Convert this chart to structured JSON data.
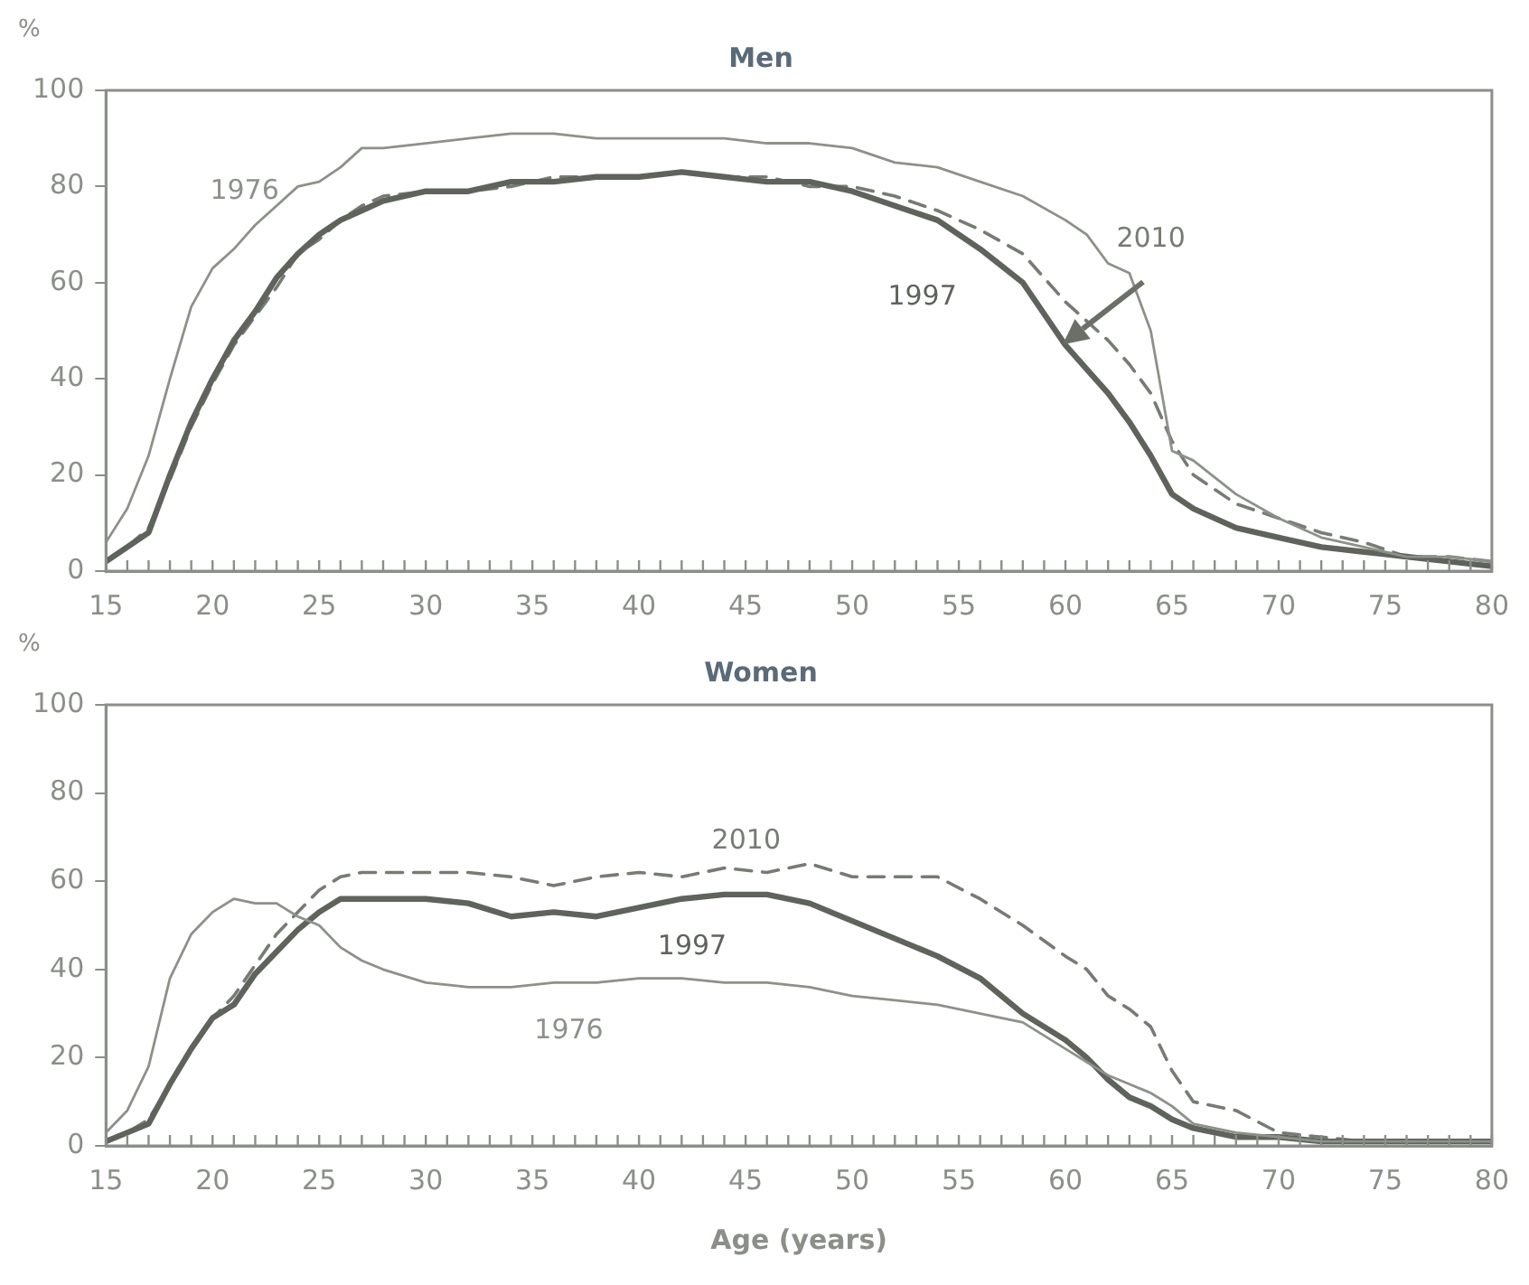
{
  "chart_data": [
    {
      "type": "line",
      "title": "Men",
      "ylabel": "%",
      "x": [
        15,
        16,
        17,
        18,
        19,
        20,
        21,
        22,
        23,
        24,
        25,
        26,
        27,
        28,
        30,
        32,
        34,
        36,
        38,
        40,
        42,
        44,
        46,
        48,
        50,
        52,
        54,
        56,
        58,
        60,
        61,
        62,
        63,
        64,
        65,
        66,
        68,
        70,
        72,
        74,
        76,
        78,
        80
      ],
      "series": [
        {
          "name": "1976",
          "color": "#8c9189",
          "line_style": "solid",
          "values": [
            6,
            13,
            24,
            40,
            55,
            63,
            67,
            72,
            76,
            80,
            81,
            84,
            88,
            88,
            89,
            90,
            91,
            91,
            90,
            90,
            90,
            90,
            89,
            89,
            88,
            85,
            84,
            81,
            78,
            73,
            70,
            64,
            62,
            50,
            25,
            23,
            16,
            11,
            7,
            5,
            3,
            3,
            2
          ]
        },
        {
          "name": "1997",
          "color": "#5e635b",
          "line_style": "solid",
          "values": [
            2,
            5,
            8,
            20,
            31,
            40,
            48,
            54,
            61,
            66,
            70,
            73,
            75,
            77,
            79,
            79,
            81,
            81,
            82,
            82,
            83,
            82,
            81,
            81,
            79,
            76,
            73,
            67,
            60,
            47,
            42,
            37,
            31,
            24,
            16,
            13,
            9,
            7,
            5,
            4,
            3,
            2,
            1
          ]
        },
        {
          "name": "2010",
          "color": "#767b73",
          "line_style": "dashed",
          "values": [
            2,
            5,
            9,
            19,
            30,
            39,
            47,
            53,
            59,
            66,
            69,
            73,
            76,
            78,
            79,
            79,
            80,
            82,
            82,
            82,
            83,
            82,
            82,
            80,
            80,
            78,
            75,
            71,
            66,
            56,
            52,
            48,
            43,
            37,
            27,
            20,
            14,
            11,
            8,
            6,
            3,
            3,
            2
          ]
        }
      ],
      "xlim": [
        15,
        80
      ],
      "ylim": [
        0,
        100
      ],
      "xticks": [
        15,
        {
          "value": 16,
          "label": null
        },
        {
          "value": 17,
          "label": null
        },
        {
          "value": 18,
          "label": null
        },
        {
          "value": 19,
          "label": null
        },
        20,
        {
          "value": 21,
          "label": null
        },
        {
          "value": 22,
          "label": null
        },
        {
          "value": 23,
          "label": null
        },
        {
          "value": 24,
          "label": null
        },
        25,
        {
          "value": 26,
          "label": null
        },
        {
          "value": 27,
          "label": null
        },
        {
          "value": 28,
          "label": null
        },
        {
          "value": 29,
          "label": null
        },
        30,
        {
          "value": 31,
          "label": null
        },
        {
          "value": 32,
          "label": null
        },
        {
          "value": 33,
          "label": null
        },
        {
          "value": 34,
          "label": null
        },
        35,
        {
          "value": 36,
          "label": null
        },
        {
          "value": 37,
          "label": null
        },
        {
          "value": 38,
          "label": null
        },
        {
          "value": 39,
          "label": null
        },
        40,
        {
          "value": 41,
          "label": null
        },
        {
          "value": 42,
          "label": null
        },
        {
          "value": 43,
          "label": null
        },
        {
          "value": 44,
          "label": null
        },
        45,
        {
          "value": 46,
          "label": null
        },
        {
          "value": 47,
          "label": null
        },
        {
          "value": 48,
          "label": null
        },
        {
          "value": 49,
          "label": null
        },
        50,
        {
          "value": 51,
          "label": null
        },
        {
          "value": 52,
          "label": null
        },
        {
          "value": 53,
          "label": null
        },
        {
          "value": 54,
          "label": null
        },
        55,
        {
          "value": 56,
          "label": null
        },
        {
          "value": 57,
          "label": null
        },
        {
          "value": 58,
          "label": null
        },
        {
          "value": 59,
          "label": null
        },
        60,
        {
          "value": 61,
          "label": null
        },
        {
          "value": 62,
          "label": null
        },
        {
          "value": 63,
          "label": null
        },
        {
          "value": 64,
          "label": null
        },
        65,
        {
          "value": 66,
          "label": null
        },
        {
          "value": 67,
          "label": null
        },
        {
          "value": 68,
          "label": null
        },
        {
          "value": 69,
          "label": null
        },
        70,
        {
          "value": 71,
          "label": null
        },
        {
          "value": 72,
          "label": null
        },
        {
          "value": 73,
          "label": null
        },
        {
          "value": 74,
          "label": null
        },
        75,
        {
          "value": 76,
          "label": null
        },
        {
          "value": 77,
          "label": null
        },
        {
          "value": 78,
          "label": null
        },
        {
          "value": 79,
          "label": null
        },
        80
      ],
      "yticks": [
        0,
        20,
        40,
        60,
        80,
        100
      ]
    },
    {
      "type": "line",
      "title": "Women",
      "ylabel": "%",
      "xlabel": "Age (years)",
      "x": [
        15,
        16,
        17,
        18,
        19,
        20,
        21,
        22,
        23,
        24,
        25,
        26,
        27,
        28,
        30,
        32,
        34,
        36,
        38,
        40,
        42,
        44,
        46,
        48,
        50,
        52,
        54,
        56,
        58,
        60,
        61,
        62,
        63,
        64,
        65,
        66,
        68,
        70,
        72,
        74,
        76,
        78,
        80
      ],
      "series": [
        {
          "name": "1976",
          "color": "#8c9189",
          "line_style": "solid",
          "values": [
            3,
            8,
            18,
            38,
            48,
            53,
            56,
            55,
            55,
            52,
            50,
            45,
            42,
            40,
            37,
            36,
            36,
            37,
            37,
            38,
            38,
            37,
            37,
            36,
            34,
            33,
            32,
            30,
            28,
            22,
            19,
            16,
            14,
            12,
            9,
            5,
            3,
            2,
            1,
            1,
            1,
            1,
            1
          ]
        },
        {
          "name": "1997",
          "color": "#5e635b",
          "line_style": "solid",
          "values": [
            1,
            3,
            5,
            14,
            22,
            29,
            32,
            39,
            44,
            49,
            53,
            56,
            56,
            56,
            56,
            55,
            52,
            53,
            52,
            54,
            56,
            57,
            57,
            55,
            51,
            47,
            43,
            38,
            30,
            24,
            20,
            15,
            11,
            9,
            6,
            4,
            2,
            2,
            1,
            1,
            1,
            1,
            1
          ]
        },
        {
          "name": "2010",
          "color": "#767b73",
          "line_style": "dashed",
          "values": [
            1,
            3,
            6,
            14,
            22,
            29,
            34,
            41,
            48,
            53,
            58,
            61,
            62,
            62,
            62,
            62,
            61,
            59,
            61,
            62,
            61,
            63,
            62,
            64,
            61,
            61,
            61,
            56,
            50,
            43,
            40,
            34,
            31,
            27,
            17,
            10,
            8,
            3,
            2,
            1,
            1,
            1,
            1
          ]
        }
      ],
      "xlim": [
        15,
        80
      ],
      "ylim": [
        0,
        100
      ],
      "xticks": [
        15,
        {
          "value": 16,
          "label": null
        },
        {
          "value": 17,
          "label": null
        },
        {
          "value": 18,
          "label": null
        },
        {
          "value": 19,
          "label": null
        },
        20,
        {
          "value": 21,
          "label": null
        },
        {
          "value": 22,
          "label": null
        },
        {
          "value": 23,
          "label": null
        },
        {
          "value": 24,
          "label": null
        },
        25,
        {
          "value": 26,
          "label": null
        },
        {
          "value": 27,
          "label": null
        },
        {
          "value": 28,
          "label": null
        },
        {
          "value": 29,
          "label": null
        },
        30,
        {
          "value": 31,
          "label": null
        },
        {
          "value": 32,
          "label": null
        },
        {
          "value": 33,
          "label": null
        },
        {
          "value": 34,
          "label": null
        },
        35,
        {
          "value": 36,
          "label": null
        },
        {
          "value": 37,
          "label": null
        },
        {
          "value": 38,
          "label": null
        },
        {
          "value": 39,
          "label": null
        },
        40,
        {
          "value": 41,
          "label": null
        },
        {
          "value": 42,
          "label": null
        },
        {
          "value": 43,
          "label": null
        },
        {
          "value": 44,
          "label": null
        },
        45,
        {
          "value": 46,
          "label": null
        },
        {
          "value": 47,
          "label": null
        },
        {
          "value": 48,
          "label": null
        },
        {
          "value": 49,
          "label": null
        },
        50,
        {
          "value": 51,
          "label": null
        },
        {
          "value": 52,
          "label": null
        },
        {
          "value": 53,
          "label": null
        },
        {
          "value": 54,
          "label": null
        },
        55,
        {
          "value": 56,
          "label": null
        },
        {
          "value": 57,
          "label": null
        },
        {
          "value": 58,
          "label": null
        },
        {
          "value": 59,
          "label": null
        },
        60,
        {
          "value": 61,
          "label": null
        },
        {
          "value": 62,
          "label": null
        },
        {
          "value": 63,
          "label": null
        },
        {
          "value": 64,
          "label": null
        },
        65,
        {
          "value": 66,
          "label": null
        },
        {
          "value": 67,
          "label": null
        },
        {
          "value": 68,
          "label": null
        },
        {
          "value": 69,
          "label": null
        },
        70,
        {
          "value": 71,
          "label": null
        },
        {
          "value": 72,
          "label": null
        },
        {
          "value": 73,
          "label": null
        },
        {
          "value": 74,
          "label": null
        },
        75,
        {
          "value": 76,
          "label": null
        },
        {
          "value": 77,
          "label": null
        },
        {
          "value": 78,
          "label": null
        },
        {
          "value": 79,
          "label": null
        },
        80
      ],
      "yticks": [
        0,
        20,
        40,
        60,
        80,
        100
      ]
    }
  ]
}
